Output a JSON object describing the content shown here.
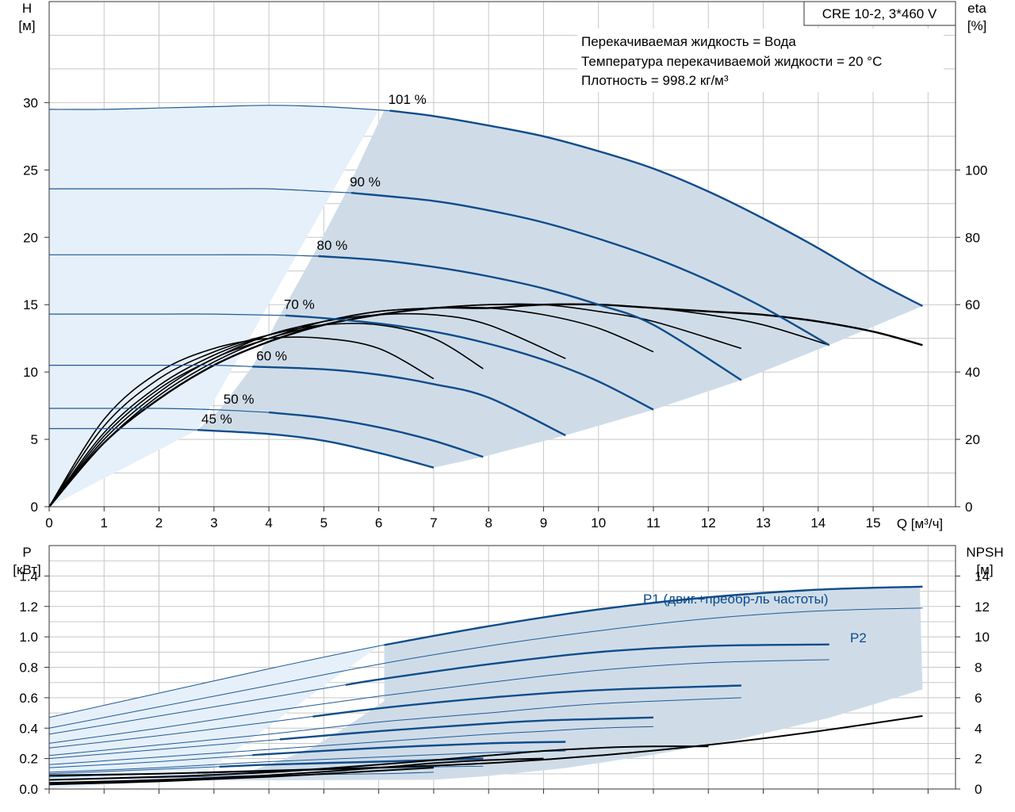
{
  "chart_data": [
    {
      "type": "line",
      "title": "CRE 10-2, 3*460 V",
      "xlabel": "Q [м³/ч]",
      "ylabel": "H [м]",
      "y2label": "eta [%]",
      "xlim": [
        0,
        16.5
      ],
      "ylim": [
        0,
        37.5
      ],
      "y2lim": [
        0,
        150
      ],
      "xticks": [
        "0",
        "1",
        "2",
        "3",
        "4",
        "5",
        "6",
        "7",
        "8",
        "9",
        "10",
        "11",
        "12",
        "13",
        "14",
        "15"
      ],
      "yticks": [
        "0",
        "5",
        "10",
        "15",
        "20",
        "25",
        "30"
      ],
      "y2ticks": [
        "0",
        "20",
        "40",
        "60",
        "80",
        "100"
      ],
      "grid": true,
      "info": {
        "line1": "Перекачиваемая жидкость = Вода",
        "line2": "Температура перекачиваемой жидкости = 20 °C",
        "line3": "Плотность = 998.2 кг/м³"
      },
      "head_series": [
        {
          "name": "101 %",
          "label_x": 6.1,
          "x": [
            0,
            1,
            2,
            3,
            4,
            5,
            6.2,
            7,
            8,
            9,
            10,
            11,
            12,
            13,
            14,
            15,
            15.9
          ],
          "y": [
            29.5,
            29.5,
            29.6,
            29.7,
            29.8,
            29.7,
            29.4,
            29.0,
            28.3,
            27.5,
            26.4,
            25.1,
            23.4,
            21.4,
            19.2,
            16.8,
            14.9
          ]
        },
        {
          "name": "90 %",
          "label_x": 5.4,
          "x": [
            0,
            1,
            2,
            3,
            4,
            5,
            5.5,
            7,
            8,
            9,
            10,
            11,
            12,
            13,
            14.2
          ],
          "y": [
            23.6,
            23.6,
            23.6,
            23.6,
            23.6,
            23.4,
            23.3,
            22.7,
            22.0,
            21.1,
            19.9,
            18.5,
            16.8,
            14.8,
            12.0
          ]
        },
        {
          "name": "80 %",
          "label_x": 4.8,
          "x": [
            0,
            1,
            2,
            3,
            4,
            4.9,
            6,
            7,
            8,
            9,
            10,
            11,
            12.6
          ],
          "y": [
            18.7,
            18.7,
            18.7,
            18.7,
            18.7,
            18.6,
            18.3,
            17.8,
            17.1,
            16.2,
            15.0,
            13.5,
            9.4
          ]
        },
        {
          "name": "70 %",
          "label_x": 4.2,
          "x": [
            0,
            1,
            2,
            3,
            4.3,
            5,
            6,
            7,
            8,
            9,
            10,
            11
          ],
          "y": [
            14.3,
            14.3,
            14.3,
            14.3,
            14.2,
            14.0,
            13.6,
            13.0,
            12.1,
            10.9,
            9.3,
            7.2
          ]
        },
        {
          "name": "60 %",
          "label_x": 3.7,
          "x": [
            0,
            1,
            2,
            3,
            3.7,
            5,
            6,
            7,
            8,
            9.4
          ],
          "y": [
            10.5,
            10.5,
            10.5,
            10.5,
            10.4,
            10.2,
            9.8,
            9.1,
            8.1,
            5.3
          ]
        },
        {
          "name": "50 %",
          "label_x": 3.1,
          "x": [
            0,
            1,
            2,
            3,
            4,
            5,
            6,
            7,
            7.9
          ],
          "y": [
            7.3,
            7.3,
            7.3,
            7.2,
            7.0,
            6.6,
            5.9,
            4.9,
            3.7
          ]
        },
        {
          "name": "45 %",
          "label_x": 2.7,
          "x": [
            0,
            1,
            2,
            2.7,
            4,
            5,
            6,
            7
          ],
          "y": [
            5.8,
            5.8,
            5.8,
            5.7,
            5.4,
            4.9,
            4.0,
            2.9
          ]
        }
      ],
      "eta_series": [
        {
          "x": [
            0,
            1,
            2,
            3,
            4,
            5,
            6,
            7
          ],
          "y": [
            0,
            26,
            40,
            47,
            50,
            50,
            47,
            38
          ]
        },
        {
          "x": [
            0,
            1,
            2,
            3,
            4,
            5,
            6,
            7,
            7.9
          ],
          "y": [
            0,
            24,
            38,
            46,
            51,
            54,
            54,
            50,
            41
          ]
        },
        {
          "x": [
            0,
            1,
            2,
            3,
            4,
            5,
            6,
            7,
            8,
            9.4
          ],
          "y": [
            0,
            22,
            36,
            45,
            51,
            55,
            57,
            57,
            54,
            44
          ]
        },
        {
          "x": [
            0,
            1,
            2,
            3,
            4,
            5,
            6,
            7,
            8,
            9,
            10,
            11
          ],
          "y": [
            0,
            21,
            35,
            44,
            51,
            55,
            58,
            59,
            59,
            57,
            53,
            46
          ]
        },
        {
          "x": [
            0,
            1,
            2,
            3,
            4,
            5,
            6,
            7,
            8,
            9,
            10,
            11,
            12.6
          ],
          "y": [
            0,
            20,
            34,
            44,
            50,
            55,
            58,
            59,
            60,
            60,
            58,
            55,
            47
          ]
        },
        {
          "x": [
            0,
            1,
            2,
            3,
            4,
            5,
            6,
            7,
            8,
            9,
            10,
            11,
            12,
            13,
            14.2
          ],
          "y": [
            0,
            19,
            33,
            43,
            50,
            54,
            57,
            59,
            60,
            60,
            60,
            59,
            57,
            54,
            48
          ]
        },
        {
          "x": [
            0,
            1,
            2,
            3,
            4,
            5,
            6,
            7,
            8,
            9,
            10,
            11,
            12,
            13,
            14,
            15,
            15.9
          ],
          "y": [
            0,
            19,
            32,
            42,
            49,
            54,
            57,
            59,
            59,
            60,
            60,
            59,
            58,
            57,
            55,
            52,
            48
          ]
        }
      ]
    },
    {
      "type": "line",
      "xlabel": "Q [м³/ч]",
      "ylabel": "P [кВт]",
      "y2label": "NPSH [м]",
      "xlim": [
        0,
        16.5
      ],
      "ylim": [
        0,
        1.6
      ],
      "y2lim": [
        0,
        16
      ],
      "yticks": [
        "0.0",
        "0.2",
        "0.4",
        "0.6",
        "0.8",
        "1.0",
        "1.2",
        "1.4"
      ],
      "y2ticks": [
        "0",
        "2",
        "4",
        "6",
        "8",
        "10",
        "12",
        "14"
      ],
      "grid": true,
      "p1_label": "P1 (двиг.+преобр-ль частоты)",
      "p2_label": "P2",
      "p1_series": [
        {
          "x": [
            0,
            2,
            4,
            6,
            8,
            10,
            12,
            14,
            15.9
          ],
          "y": [
            0.47,
            0.63,
            0.79,
            0.94,
            1.07,
            1.18,
            1.26,
            1.31,
            1.33
          ]
        },
        {
          "x": [
            0,
            2,
            4,
            6,
            8,
            10,
            12,
            14.2
          ],
          "y": [
            0.36,
            0.48,
            0.6,
            0.72,
            0.82,
            0.9,
            0.94,
            0.95
          ]
        },
        {
          "x": [
            0,
            2,
            4,
            6,
            8,
            10,
            12.6
          ],
          "y": [
            0.27,
            0.35,
            0.44,
            0.53,
            0.6,
            0.65,
            0.68
          ]
        },
        {
          "x": [
            0,
            2,
            4,
            6,
            8,
            9,
            10,
            11
          ],
          "y": [
            0.2,
            0.26,
            0.32,
            0.38,
            0.43,
            0.45,
            0.46,
            0.47
          ]
        },
        {
          "x": [
            0,
            2,
            4,
            6,
            8,
            9.4
          ],
          "y": [
            0.14,
            0.18,
            0.23,
            0.27,
            0.3,
            0.31
          ]
        },
        {
          "x": [
            0,
            2,
            4,
            6,
            7.9
          ],
          "y": [
            0.1,
            0.13,
            0.16,
            0.18,
            0.2
          ]
        },
        {
          "x": [
            0,
            2,
            4,
            6,
            7
          ],
          "y": [
            0.08,
            0.1,
            0.12,
            0.14,
            0.15
          ]
        }
      ],
      "p2_series": [
        {
          "x": [
            0,
            2,
            4,
            6,
            8,
            10,
            12,
            14,
            15.9
          ],
          "y": [
            0.4,
            0.54,
            0.68,
            0.82,
            0.94,
            1.04,
            1.12,
            1.17,
            1.19
          ]
        },
        {
          "x": [
            0,
            2,
            4,
            6,
            8,
            10,
            12,
            14.2
          ],
          "y": [
            0.3,
            0.4,
            0.51,
            0.61,
            0.7,
            0.78,
            0.83,
            0.85
          ]
        },
        {
          "x": [
            0,
            2,
            4,
            6,
            8,
            10,
            12.6
          ],
          "y": [
            0.22,
            0.29,
            0.36,
            0.44,
            0.5,
            0.56,
            0.6
          ]
        },
        {
          "x": [
            0,
            2,
            4,
            6,
            8,
            9,
            10,
            11
          ],
          "y": [
            0.16,
            0.21,
            0.26,
            0.31,
            0.36,
            0.38,
            0.4,
            0.41
          ]
        },
        {
          "x": [
            0,
            2,
            4,
            6,
            8,
            9.4
          ],
          "y": [
            0.11,
            0.14,
            0.18,
            0.21,
            0.24,
            0.25
          ]
        },
        {
          "x": [
            0,
            2,
            4,
            6,
            7.9
          ],
          "y": [
            0.08,
            0.1,
            0.12,
            0.14,
            0.15
          ]
        },
        {
          "x": [
            0,
            2,
            4,
            6,
            7
          ],
          "y": [
            0.06,
            0.075,
            0.09,
            0.1,
            0.11
          ]
        }
      ],
      "npsh_series": [
        {
          "x": [
            0,
            2,
            4,
            6,
            8,
            10,
            12,
            14,
            15.9
          ],
          "y": [
            0.9,
            1.0,
            1.2,
            1.4,
            1.7,
            2.2,
            2.9,
            3.8,
            4.8
          ]
        },
        {
          "x": [
            0,
            2,
            4,
            6,
            8,
            9,
            10,
            11,
            12
          ],
          "y": [
            0.6,
            0.8,
            1.1,
            1.6,
            2.2,
            2.5,
            2.7,
            2.8,
            2.8
          ]
        },
        {
          "x": [
            0,
            2,
            4,
            6,
            7,
            8,
            9
          ],
          "y": [
            0.4,
            0.6,
            0.9,
            1.4,
            1.7,
            1.9,
            2.0
          ]
        },
        {
          "x": [
            0,
            2,
            4,
            6,
            7
          ],
          "y": [
            0.3,
            0.5,
            0.8,
            1.2,
            1.4
          ]
        }
      ]
    }
  ]
}
